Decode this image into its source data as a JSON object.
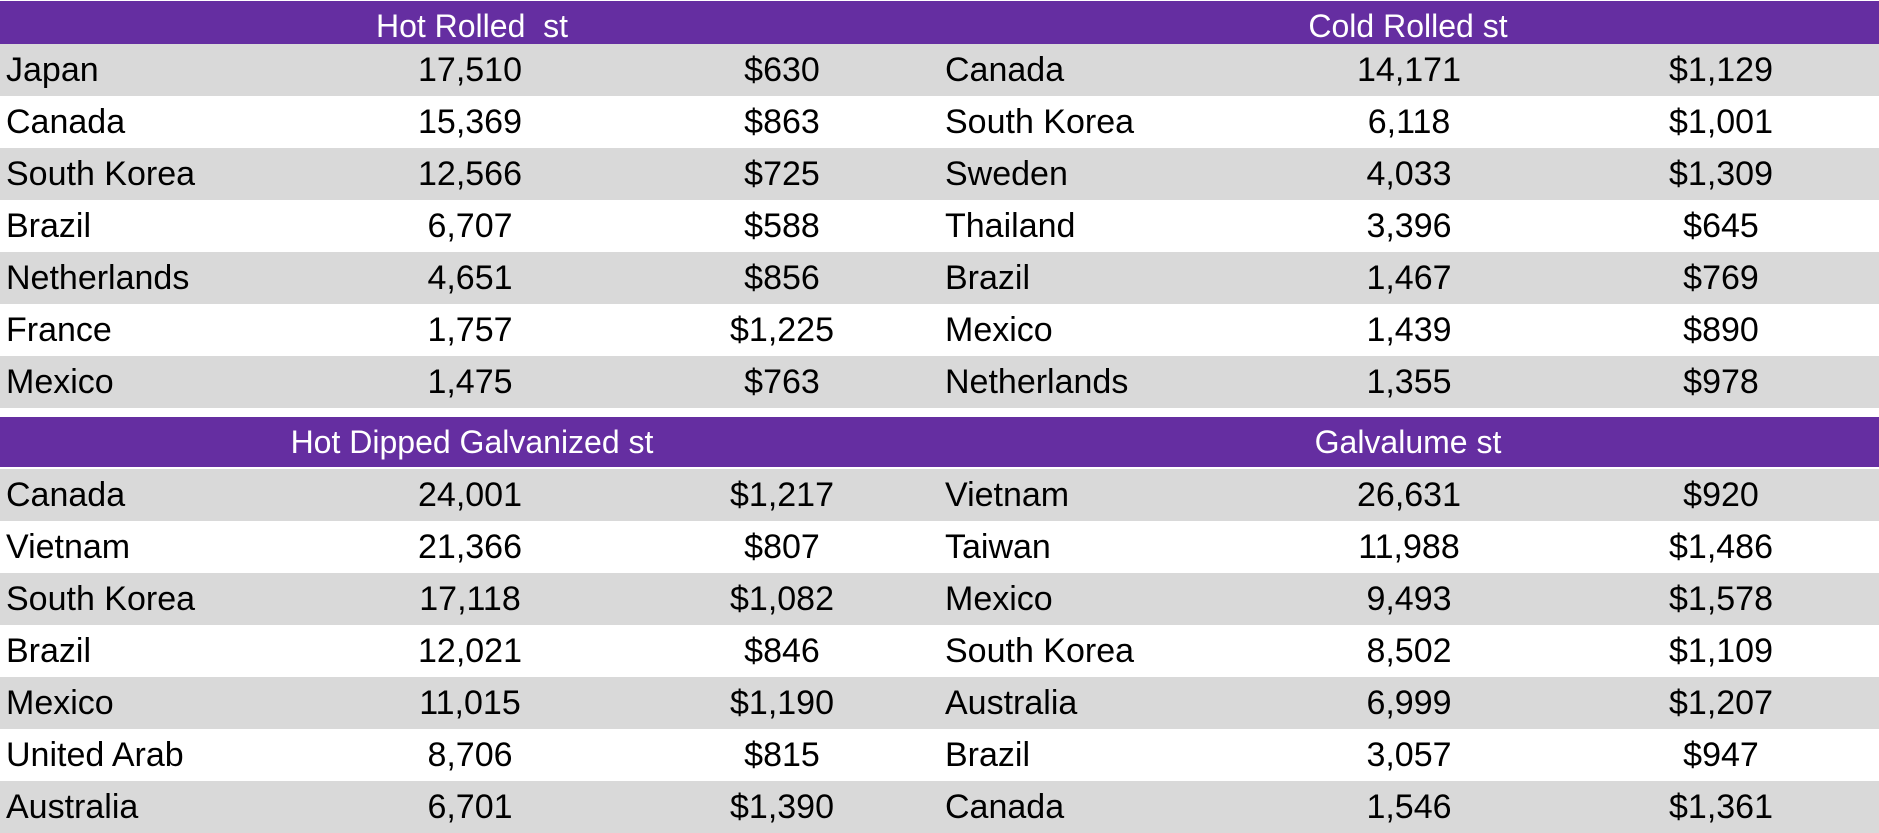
{
  "sections": [
    {
      "title": "Hot Rolled  st",
      "rows": [
        [
          "Japan",
          "17,510",
          "$630"
        ],
        [
          "Canada",
          "15,369",
          "$863"
        ],
        [
          "South Korea",
          "12,566",
          "$725"
        ],
        [
          "Brazil",
          "6,707",
          "$588"
        ],
        [
          "Netherlands",
          "4,651",
          "$856"
        ],
        [
          "France",
          "1,757",
          "$1,225"
        ],
        [
          "Mexico",
          "1,475",
          "$763"
        ]
      ]
    },
    {
      "title": "Cold Rolled st",
      "rows": [
        [
          "Canada",
          "14,171",
          "$1,129"
        ],
        [
          "South Korea",
          "6,118",
          "$1,001"
        ],
        [
          "Sweden",
          "4,033",
          "$1,309"
        ],
        [
          "Thailand",
          "3,396",
          "$645"
        ],
        [
          "Brazil",
          "1,467",
          "$769"
        ],
        [
          "Mexico",
          "1,439",
          "$890"
        ],
        [
          "Netherlands",
          "1,355",
          "$978"
        ]
      ]
    },
    {
      "title": "Hot Dipped Galvanized st",
      "rows": [
        [
          "Canada",
          "24,001",
          "$1,217"
        ],
        [
          "Vietnam",
          "21,366",
          "$807"
        ],
        [
          "South Korea",
          "17,118",
          "$1,082"
        ],
        [
          "Brazil",
          "12,021",
          "$846"
        ],
        [
          "Mexico",
          "11,015",
          "$1,190"
        ],
        [
          "United Arab",
          "8,706",
          "$815"
        ],
        [
          "Australia",
          "6,701",
          "$1,390"
        ]
      ]
    },
    {
      "title": "Galvalume st",
      "rows": [
        [
          "Vietnam",
          "26,631",
          "$920"
        ],
        [
          "Taiwan",
          "11,988",
          "$1,486"
        ],
        [
          "Mexico",
          "9,493",
          "$1,578"
        ],
        [
          "South Korea",
          "8,502",
          "$1,109"
        ],
        [
          "Australia",
          "6,999",
          "$1,207"
        ],
        [
          "Brazil",
          "3,057",
          "$947"
        ],
        [
          "Canada",
          "1,546",
          "$1,361"
        ]
      ]
    }
  ],
  "colors": {
    "header_band": "#652ea1",
    "header_text": "#ffffff",
    "row_shade": "#d9d9d9",
    "row_plain": "#ffffff"
  }
}
